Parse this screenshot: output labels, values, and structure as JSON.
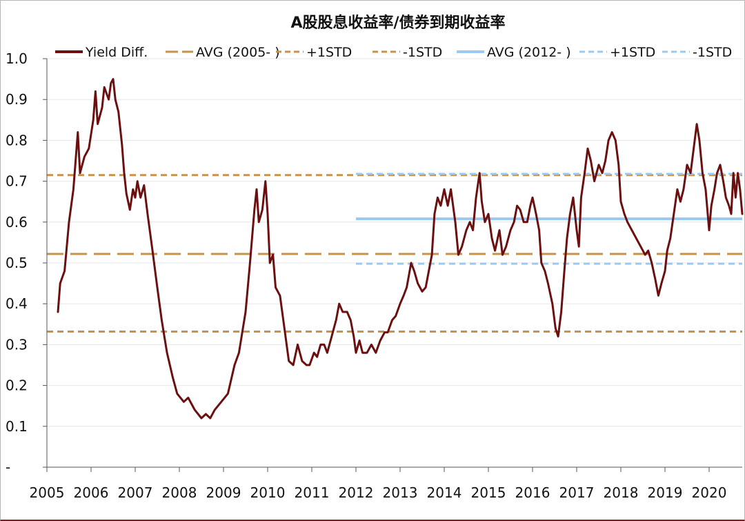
{
  "chart_data": {
    "type": "line",
    "title": "A股股息收益率/债券到期收益率",
    "xlabel": "",
    "ylabel": "",
    "ylim": [
      0,
      1.0
    ],
    "xlim": [
      2005.0,
      2020.75
    ],
    "y_ticks": [
      "-",
      "0.1",
      "0.2",
      "0.3",
      "0.4",
      "0.5",
      "0.6",
      "0.7",
      "0.8",
      "0.9",
      "1.0"
    ],
    "x_ticks": [
      "2005",
      "2006",
      "2007",
      "2008",
      "2009",
      "2010",
      "2011",
      "2012",
      "2013",
      "2014",
      "2015",
      "2016",
      "2017",
      "2018",
      "2019",
      "2020"
    ],
    "grid": "horizontal",
    "legend_position": "top",
    "colors": {
      "yield": "#6b0f0f",
      "avg2005": "#c8924a",
      "avg2012": "#9cc9ef"
    },
    "legend": [
      {
        "label": "Yield Diff.",
        "style": "solid",
        "color": "#6b0f0f"
      },
      {
        "label": "AVG (2005- )",
        "style": "longdash",
        "color": "#c8924a"
      },
      {
        "label": "+1STD",
        "style": "dash",
        "color": "#c8924a"
      },
      {
        "label": "-1STD",
        "style": "dash",
        "color": "#c8924a"
      },
      {
        "label": "AVG (2012- )",
        "style": "solid",
        "color": "#9cc9ef"
      },
      {
        "label": "+1STD",
        "style": "dash",
        "color": "#9cc9ef"
      },
      {
        "label": "-1STD",
        "style": "dash",
        "color": "#9cc9ef"
      }
    ],
    "reference_lines": [
      {
        "series": "AVG (2005- )",
        "value": 0.522,
        "x_start": 2005.0,
        "x_end": 2020.75,
        "style": "longdash",
        "color": "#c8924a"
      },
      {
        "series": "+1STD",
        "value": 0.715,
        "x_start": 2005.0,
        "x_end": 2020.75,
        "style": "dash",
        "color": "#c8924a"
      },
      {
        "series": "-1STD",
        "value": 0.332,
        "x_start": 2005.0,
        "x_end": 2020.75,
        "style": "dash",
        "color": "#c8924a"
      },
      {
        "series": "AVG (2012- )",
        "value": 0.608,
        "x_start": 2012.0,
        "x_end": 2020.75,
        "style": "solid",
        "color": "#9cc9ef"
      },
      {
        "series": "+1STD",
        "value": 0.718,
        "x_start": 2012.0,
        "x_end": 2020.75,
        "style": "dash",
        "color": "#9cc9ef"
      },
      {
        "series": "-1STD",
        "value": 0.498,
        "x_start": 2012.0,
        "x_end": 2020.75,
        "style": "dash",
        "color": "#9cc9ef"
      }
    ],
    "series": [
      {
        "name": "Yield Diff.",
        "points": [
          [
            2005.25,
            0.38
          ],
          [
            2005.3,
            0.45
          ],
          [
            2005.4,
            0.48
          ],
          [
            2005.5,
            0.6
          ],
          [
            2005.6,
            0.68
          ],
          [
            2005.7,
            0.82
          ],
          [
            2005.75,
            0.72
          ],
          [
            2005.85,
            0.76
          ],
          [
            2005.95,
            0.78
          ],
          [
            2006.05,
            0.85
          ],
          [
            2006.1,
            0.92
          ],
          [
            2006.15,
            0.84
          ],
          [
            2006.25,
            0.88
          ],
          [
            2006.3,
            0.93
          ],
          [
            2006.4,
            0.9
          ],
          [
            2006.45,
            0.94
          ],
          [
            2006.5,
            0.95
          ],
          [
            2006.55,
            0.9
          ],
          [
            2006.62,
            0.87
          ],
          [
            2006.7,
            0.79
          ],
          [
            2006.75,
            0.72
          ],
          [
            2006.8,
            0.67
          ],
          [
            2006.88,
            0.63
          ],
          [
            2006.95,
            0.68
          ],
          [
            2007.0,
            0.66
          ],
          [
            2007.05,
            0.7
          ],
          [
            2007.12,
            0.66
          ],
          [
            2007.2,
            0.69
          ],
          [
            2007.28,
            0.62
          ],
          [
            2007.38,
            0.54
          ],
          [
            2007.5,
            0.44
          ],
          [
            2007.6,
            0.36
          ],
          [
            2007.72,
            0.28
          ],
          [
            2007.85,
            0.22
          ],
          [
            2007.95,
            0.18
          ],
          [
            2008.1,
            0.16
          ],
          [
            2008.2,
            0.17
          ],
          [
            2008.35,
            0.14
          ],
          [
            2008.5,
            0.12
          ],
          [
            2008.6,
            0.13
          ],
          [
            2008.7,
            0.12
          ],
          [
            2008.8,
            0.14
          ],
          [
            2008.95,
            0.16
          ],
          [
            2009.1,
            0.18
          ],
          [
            2009.25,
            0.25
          ],
          [
            2009.35,
            0.28
          ],
          [
            2009.5,
            0.38
          ],
          [
            2009.6,
            0.5
          ],
          [
            2009.7,
            0.63
          ],
          [
            2009.75,
            0.68
          ],
          [
            2009.8,
            0.6
          ],
          [
            2009.88,
            0.63
          ],
          [
            2009.95,
            0.7
          ],
          [
            2010.0,
            0.62
          ],
          [
            2010.05,
            0.5
          ],
          [
            2010.12,
            0.52
          ],
          [
            2010.18,
            0.44
          ],
          [
            2010.28,
            0.42
          ],
          [
            2010.38,
            0.34
          ],
          [
            2010.48,
            0.26
          ],
          [
            2010.58,
            0.25
          ],
          [
            2010.68,
            0.3
          ],
          [
            2010.78,
            0.26
          ],
          [
            2010.88,
            0.25
          ],
          [
            2010.95,
            0.25
          ],
          [
            2011.05,
            0.28
          ],
          [
            2011.12,
            0.27
          ],
          [
            2011.2,
            0.3
          ],
          [
            2011.28,
            0.3
          ],
          [
            2011.35,
            0.28
          ],
          [
            2011.45,
            0.32
          ],
          [
            2011.55,
            0.36
          ],
          [
            2011.62,
            0.4
          ],
          [
            2011.7,
            0.38
          ],
          [
            2011.8,
            0.38
          ],
          [
            2011.88,
            0.36
          ],
          [
            2011.95,
            0.32
          ],
          [
            2012.0,
            0.28
          ],
          [
            2012.08,
            0.31
          ],
          [
            2012.15,
            0.28
          ],
          [
            2012.25,
            0.28
          ],
          [
            2012.35,
            0.3
          ],
          [
            2012.45,
            0.28
          ],
          [
            2012.55,
            0.31
          ],
          [
            2012.65,
            0.33
          ],
          [
            2012.72,
            0.33
          ],
          [
            2012.82,
            0.36
          ],
          [
            2012.9,
            0.37
          ],
          [
            2013.0,
            0.4
          ],
          [
            2013.08,
            0.42
          ],
          [
            2013.15,
            0.44
          ],
          [
            2013.25,
            0.5
          ],
          [
            2013.32,
            0.48
          ],
          [
            2013.4,
            0.45
          ],
          [
            2013.5,
            0.43
          ],
          [
            2013.58,
            0.44
          ],
          [
            2013.65,
            0.48
          ],
          [
            2013.72,
            0.52
          ],
          [
            2013.78,
            0.62
          ],
          [
            2013.85,
            0.66
          ],
          [
            2013.92,
            0.64
          ],
          [
            2014.0,
            0.68
          ],
          [
            2014.08,
            0.64
          ],
          [
            2014.15,
            0.68
          ],
          [
            2014.25,
            0.6
          ],
          [
            2014.32,
            0.52
          ],
          [
            2014.4,
            0.54
          ],
          [
            2014.5,
            0.58
          ],
          [
            2014.58,
            0.6
          ],
          [
            2014.65,
            0.58
          ],
          [
            2014.72,
            0.66
          ],
          [
            2014.8,
            0.72
          ],
          [
            2014.85,
            0.65
          ],
          [
            2014.92,
            0.6
          ],
          [
            2015.0,
            0.62
          ],
          [
            2015.08,
            0.56
          ],
          [
            2015.15,
            0.53
          ],
          [
            2015.25,
            0.58
          ],
          [
            2015.32,
            0.52
          ],
          [
            2015.4,
            0.54
          ],
          [
            2015.5,
            0.58
          ],
          [
            2015.58,
            0.6
          ],
          [
            2015.65,
            0.64
          ],
          [
            2015.72,
            0.63
          ],
          [
            2015.8,
            0.6
          ],
          [
            2015.88,
            0.6
          ],
          [
            2015.95,
            0.64
          ],
          [
            2016.0,
            0.66
          ],
          [
            2016.08,
            0.62
          ],
          [
            2016.15,
            0.58
          ],
          [
            2016.2,
            0.5
          ],
          [
            2016.28,
            0.48
          ],
          [
            2016.35,
            0.45
          ],
          [
            2016.45,
            0.4
          ],
          [
            2016.52,
            0.34
          ],
          [
            2016.58,
            0.32
          ],
          [
            2016.65,
            0.38
          ],
          [
            2016.72,
            0.48
          ],
          [
            2016.78,
            0.56
          ],
          [
            2016.85,
            0.62
          ],
          [
            2016.92,
            0.66
          ],
          [
            2017.0,
            0.58
          ],
          [
            2017.05,
            0.54
          ],
          [
            2017.1,
            0.66
          ],
          [
            2017.18,
            0.72
          ],
          [
            2017.25,
            0.78
          ],
          [
            2017.32,
            0.75
          ],
          [
            2017.4,
            0.7
          ],
          [
            2017.5,
            0.74
          ],
          [
            2017.58,
            0.72
          ],
          [
            2017.65,
            0.75
          ],
          [
            2017.72,
            0.8
          ],
          [
            2017.8,
            0.82
          ],
          [
            2017.88,
            0.8
          ],
          [
            2017.95,
            0.74
          ],
          [
            2018.0,
            0.65
          ],
          [
            2018.08,
            0.62
          ],
          [
            2018.15,
            0.6
          ],
          [
            2018.25,
            0.58
          ],
          [
            2018.35,
            0.56
          ],
          [
            2018.45,
            0.54
          ],
          [
            2018.55,
            0.52
          ],
          [
            2018.62,
            0.53
          ],
          [
            2018.7,
            0.5
          ],
          [
            2018.78,
            0.46
          ],
          [
            2018.85,
            0.42
          ],
          [
            2018.92,
            0.45
          ],
          [
            2019.0,
            0.48
          ],
          [
            2019.05,
            0.53
          ],
          [
            2019.12,
            0.56
          ],
          [
            2019.2,
            0.62
          ],
          [
            2019.28,
            0.68
          ],
          [
            2019.35,
            0.65
          ],
          [
            2019.42,
            0.68
          ],
          [
            2019.5,
            0.74
          ],
          [
            2019.58,
            0.72
          ],
          [
            2019.65,
            0.78
          ],
          [
            2019.72,
            0.84
          ],
          [
            2019.78,
            0.8
          ],
          [
            2019.85,
            0.72
          ],
          [
            2019.92,
            0.68
          ],
          [
            2020.0,
            0.58
          ],
          [
            2020.05,
            0.64
          ],
          [
            2020.12,
            0.68
          ],
          [
            2020.18,
            0.72
          ],
          [
            2020.25,
            0.74
          ],
          [
            2020.32,
            0.7
          ],
          [
            2020.38,
            0.66
          ],
          [
            2020.45,
            0.64
          ],
          [
            2020.5,
            0.62
          ],
          [
            2020.55,
            0.72
          ],
          [
            2020.6,
            0.66
          ],
          [
            2020.65,
            0.72
          ],
          [
            2020.7,
            0.68
          ],
          [
            2020.75,
            0.62
          ]
        ]
      }
    ]
  }
}
